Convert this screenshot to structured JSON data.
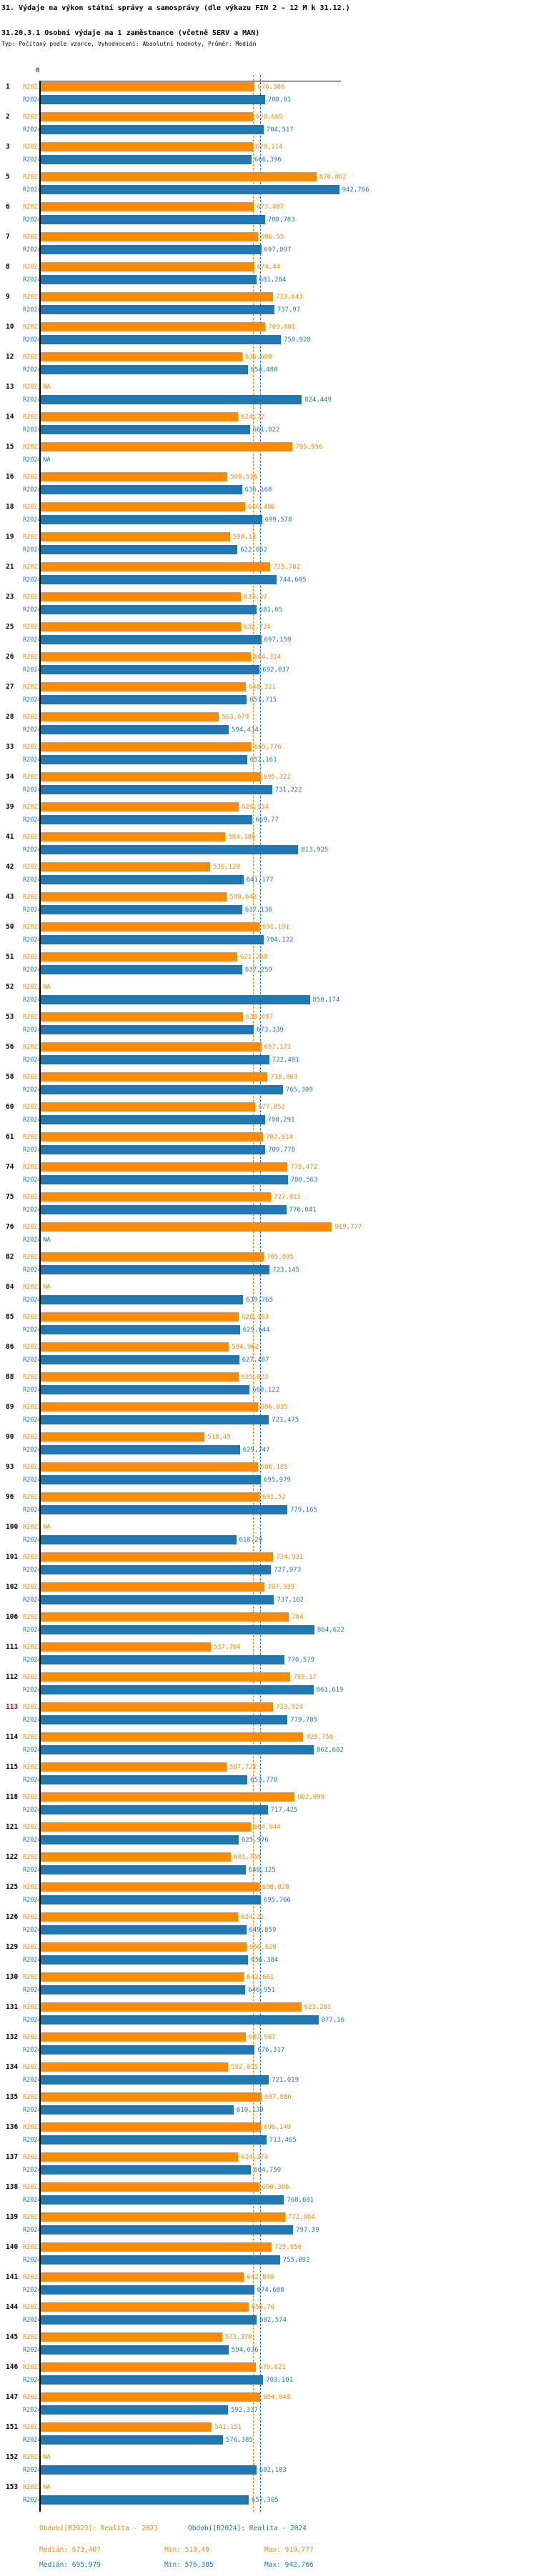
{
  "header": {
    "title": "31. Výdaje na výkon státní správy a samosprávy (dle výkazu FIN 2 - 12 M k 31.12.)",
    "subtitle": "31.20.3.1 Osobní výdaje na 1 zaměstnance (včetně SERV a MAN)",
    "meta": "Typ: Počítaný podle vzorce, Vyhodnocení: Absolutní hodnoty, Průměr: Medián"
  },
  "chart_data": {
    "type": "bar",
    "orientation": "horizontal-grouped",
    "axis_origin_label": "0",
    "series": [
      "R2023",
      "R2024"
    ],
    "colors": {
      "R2023": "#ff8c00",
      "R2024": "#1f77b4"
    },
    "highlight_color": "#dd0000",
    "highlighted_rows": [
      "113"
    ],
    "na_label": "NA",
    "decimal_separator": ",",
    "medians": {
      "R2023": "673,407",
      "R2024": "695,979"
    },
    "rows": [
      {
        "n": "1",
        "R2023": "676,586",
        "R2024": "708,81"
      },
      {
        "n": "2",
        "R2023": "670,665",
        "R2024": "704,517"
      },
      {
        "n": "3",
        "R2023": "670,114",
        "R2024": "666,396"
      },
      {
        "n": "5",
        "R2023": "870,862",
        "R2024": "942,766"
      },
      {
        "n": "6",
        "R2023": "673,407",
        "R2024": "708,783"
      },
      {
        "n": "7",
        "R2023": "686,55",
        "R2024": "697,097"
      },
      {
        "n": "8",
        "R2023": "674,44",
        "R2024": "681,264"
      },
      {
        "n": "9",
        "R2023": "733,643",
        "R2024": "737,97"
      },
      {
        "n": "10",
        "R2023": "709,881",
        "R2024": "758,928"
      },
      {
        "n": "12",
        "R2023": "636,608",
        "R2024": "654,488"
      },
      {
        "n": "13",
        "R2023": "NA",
        "R2024": "824,449"
      },
      {
        "n": "14",
        "R2023": "624,72",
        "R2024": "661,022"
      },
      {
        "n": "15",
        "R2023": "795,956",
        "R2024": "NA"
      },
      {
        "n": "16",
        "R2023": "590,516",
        "R2024": "636,168"
      },
      {
        "n": "18",
        "R2023": "646,486",
        "R2024": "699,578"
      },
      {
        "n": "19",
        "R2023": "598,13",
        "R2024": "622,052"
      },
      {
        "n": "21",
        "R2023": "725,782",
        "R2024": "744,605"
      },
      {
        "n": "23",
        "R2023": "633,37",
        "R2024": "681,65"
      },
      {
        "n": "25",
        "R2023": "632,724",
        "R2024": "697,159"
      },
      {
        "n": "26",
        "R2023": "664,314",
        "R2024": "692,037"
      },
      {
        "n": "27",
        "R2023": "648,321",
        "R2024": "651,715"
      },
      {
        "n": "28",
        "R2023": "563,679",
        "R2024": "594,434"
      },
      {
        "n": "33",
        "R2023": "665,776",
        "R2024": "652,161"
      },
      {
        "n": "34",
        "R2023": "695,322",
        "R2024": "731,222"
      },
      {
        "n": "39",
        "R2023": "626,114",
        "R2024": "669,77"
      },
      {
        "n": "41",
        "R2023": "584,186",
        "R2024": "813,925"
      },
      {
        "n": "42",
        "R2023": "536,128",
        "R2024": "641,177"
      },
      {
        "n": "43",
        "R2023": "588,642",
        "R2024": "637,136"
      },
      {
        "n": "50",
        "R2023": "691,191",
        "R2024": "704,122"
      },
      {
        "n": "51",
        "R2023": "621,288",
        "R2024": "637,259"
      },
      {
        "n": "52",
        "R2023": "NA",
        "R2024": "850,174"
      },
      {
        "n": "53",
        "R2023": "639,497",
        "R2024": "673,339"
      },
      {
        "n": "56",
        "R2023": "697,171",
        "R2024": "722,481"
      },
      {
        "n": "58",
        "R2023": "716,863",
        "R2024": "765,309"
      },
      {
        "n": "60",
        "R2023": "677,852",
        "R2024": "708,291"
      },
      {
        "n": "61",
        "R2023": "702,614",
        "R2024": "709,778"
      },
      {
        "n": "74",
        "R2023": "779,472",
        "R2024": "780,563"
      },
      {
        "n": "75",
        "R2023": "727,815",
        "R2024": "776,041"
      },
      {
        "n": "76",
        "R2023": "919,777",
        "R2024": "NA"
      },
      {
        "n": "82",
        "R2023": "705,095",
        "R2024": "723,145"
      },
      {
        "n": "84",
        "R2023": "NA",
        "R2024": "639,765"
      },
      {
        "n": "85",
        "R2023": "626,163",
        "R2024": "629,644"
      },
      {
        "n": "86",
        "R2023": "594,962",
        "R2024": "627,487"
      },
      {
        "n": "88",
        "R2023": "625,023",
        "R2024": "660,122"
      },
      {
        "n": "89",
        "R2023": "686,035",
        "R2024": "721,475"
      },
      {
        "n": "90",
        "R2023": "518,49",
        "R2024": "629,747"
      },
      {
        "n": "93",
        "R2023": "686,185",
        "R2024": "695,979"
      },
      {
        "n": "96",
        "R2023": "691,52",
        "R2024": "779,165"
      },
      {
        "n": "100",
        "R2023": "NA",
        "R2024": "618,29"
      },
      {
        "n": "101",
        "R2023": "734,931",
        "R2024": "727,973"
      },
      {
        "n": "102",
        "R2023": "707,939",
        "R2024": "737,162"
      },
      {
        "n": "106",
        "R2023": "784",
        "R2024": "864,622"
      },
      {
        "n": "111",
        "R2023": "537,704",
        "R2024": "770,579"
      },
      {
        "n": "112",
        "R2023": "789,17",
        "R2024": "861,619"
      },
      {
        "n": "113",
        "R2023": "733,924",
        "R2024": "779,785"
      },
      {
        "n": "114",
        "R2023": "829,756",
        "R2024": "862,682"
      },
      {
        "n": "115",
        "R2023": "587,721",
        "R2024": "653,778"
      },
      {
        "n": "118",
        "R2023": "802,099",
        "R2024": "717,425"
      },
      {
        "n": "121",
        "R2023": "664,044",
        "R2024": "625,976"
      },
      {
        "n": "122",
        "R2023": "601,758",
        "R2024": "648,125"
      },
      {
        "n": "125",
        "R2023": "690,828",
        "R2024": "695,766"
      },
      {
        "n": "126",
        "R2023": "624,21",
        "R2024": "649,859"
      },
      {
        "n": "129",
        "R2023": "650,628",
        "R2024": "656,384"
      },
      {
        "n": "130",
        "R2023": "642,661",
        "R2024": "646,951"
      },
      {
        "n": "131",
        "R2023": "823,201",
        "R2024": "877,16"
      },
      {
        "n": "132",
        "R2023": "647,987",
        "R2024": "676,317"
      },
      {
        "n": "134",
        "R2023": "592,835",
        "R2024": "721,019"
      },
      {
        "n": "135",
        "R2023": "697,886",
        "R2024": "610,139"
      },
      {
        "n": "136",
        "R2023": "696,149",
        "R2024": "713,465"
      },
      {
        "n": "137",
        "R2023": "624,274",
        "R2024": "664,759"
      },
      {
        "n": "138",
        "R2023": "690,306",
        "R2024": "768,681"
      },
      {
        "n": "139",
        "R2023": "772,084",
        "R2024": "797,39"
      },
      {
        "n": "140",
        "R2023": "729,856",
        "R2024": "755,892"
      },
      {
        "n": "141",
        "R2023": "642,848",
        "R2024": "674,688"
      },
      {
        "n": "144",
        "R2023": "656,76",
        "R2024": "682,574"
      },
      {
        "n": "145",
        "R2023": "573,378",
        "R2024": "594,036"
      },
      {
        "n": "146",
        "R2023": "679,821",
        "R2024": "703,101"
      },
      {
        "n": "147",
        "R2023": "694,048",
        "R2024": "592,337"
      },
      {
        "n": "151",
        "R2023": "541,151",
        "R2024": "576,385"
      },
      {
        "n": "152",
        "R2023": "NA",
        "R2024": "682,103"
      },
      {
        "n": "153",
        "R2023": "NA",
        "R2024": "657,305"
      }
    ]
  },
  "footer": {
    "legend_r2023": "Období[R2023]: Realita - 2023",
    "legend_r2024": "Období[R2024]: Realita - 2024",
    "stats_r2023": {
      "median": "Medián: 673,407",
      "min": "Min: 518,49",
      "max": "Max: 919,777"
    },
    "stats_r2024": {
      "median": "Medián: 695,979",
      "min": "Min: 576,385",
      "max": "Max: 942,766"
    }
  }
}
